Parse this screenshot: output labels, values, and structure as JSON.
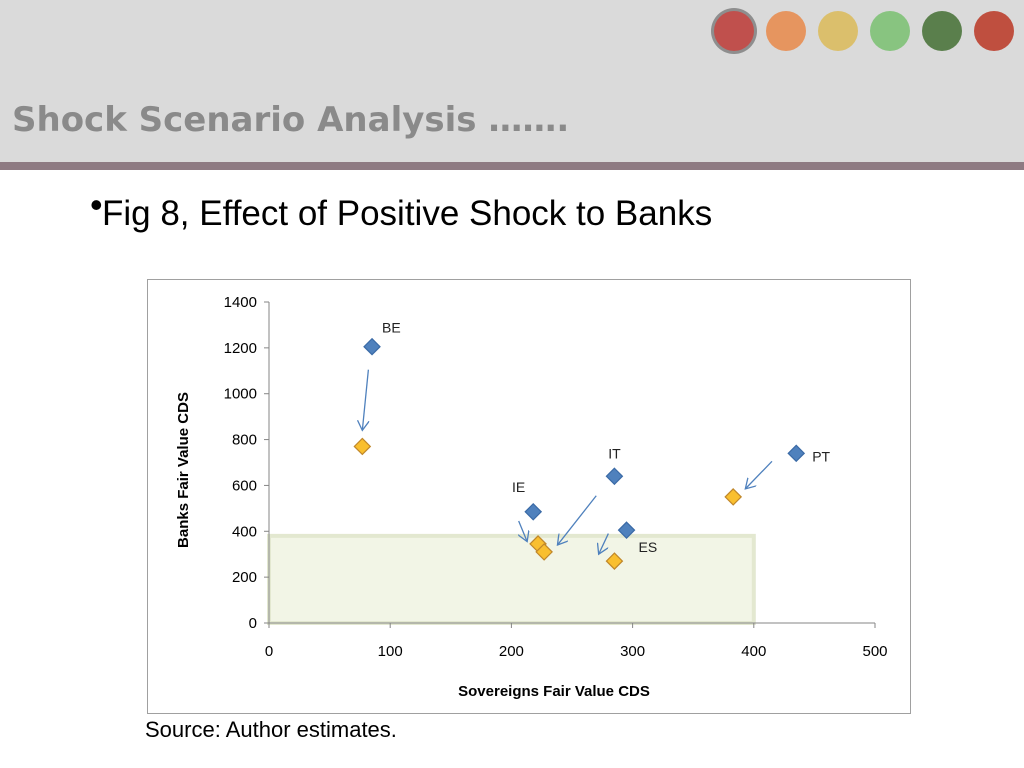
{
  "slide": {
    "title": "Shock Scenario Analysis …….",
    "bullet_symbol": "•",
    "bullet_text": "Fig 8,  Effect of Positive Shock to Banks",
    "source": "Source: Author estimates.",
    "header_dots": [
      {
        "color": "#c0504d"
      },
      {
        "color": "#e6955f"
      },
      {
        "color": "#dbbf6c"
      },
      {
        "color": "#88c480"
      },
      {
        "color": "#5a7f4c"
      },
      {
        "color": "#bf4f3f"
      }
    ]
  },
  "chart_data": {
    "type": "scatter",
    "xlabel": "Sovereigns Fair Value CDS",
    "ylabel": "Banks Fair Value CDS",
    "xlim": [
      0,
      500
    ],
    "ylim": [
      0,
      1400
    ],
    "x_ticks": [
      0,
      100,
      200,
      300,
      400,
      500
    ],
    "y_ticks": [
      0,
      200,
      400,
      600,
      800,
      1000,
      1200,
      1400
    ],
    "grid": false,
    "legend": "none",
    "series": [
      {
        "color": "#4f81bd",
        "marker": "diamond",
        "points": [
          {
            "x": 85,
            "y": 1205,
            "label": "BE"
          },
          {
            "x": 218,
            "y": 485,
            "label": "IE"
          },
          {
            "x": 285,
            "y": 640,
            "label": "IT"
          },
          {
            "x": 295,
            "y": 405,
            "label": "ES"
          },
          {
            "x": 435,
            "y": 740,
            "label": "PT"
          }
        ]
      },
      {
        "color": "#f9bf2f",
        "marker": "diamond",
        "points": [
          {
            "x": 77,
            "y": 770
          },
          {
            "x": 222,
            "y": 345
          },
          {
            "x": 227,
            "y": 310
          },
          {
            "x": 285,
            "y": 270
          },
          {
            "x": 383,
            "y": 550
          }
        ]
      }
    ],
    "arrows": [
      {
        "from": [
          82,
          1105
        ],
        "to": [
          77,
          840
        ]
      },
      {
        "from": [
          206,
          445
        ],
        "to": [
          213,
          355
        ]
      },
      {
        "from": [
          270,
          555
        ],
        "to": [
          238,
          340
        ]
      },
      {
        "from": [
          280,
          390
        ],
        "to": [
          272,
          300
        ]
      },
      {
        "from": [
          415,
          705
        ],
        "to": [
          393,
          585
        ]
      }
    ],
    "highlight_region": {
      "x": [
        0,
        400
      ],
      "y": [
        0,
        380
      ]
    }
  }
}
